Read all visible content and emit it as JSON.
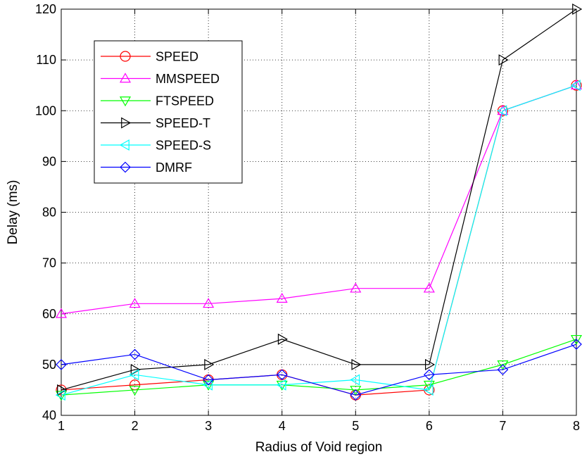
{
  "chart_data": {
    "type": "line",
    "title": "",
    "xlabel": "Radius of Void region",
    "ylabel": "Delay (ms)",
    "x": [
      1,
      2,
      3,
      4,
      5,
      6,
      7,
      8
    ],
    "xlim": [
      1,
      8
    ],
    "ylim": [
      40,
      120
    ],
    "xticks": [
      1,
      2,
      3,
      4,
      5,
      6,
      7,
      8
    ],
    "yticks": [
      40,
      50,
      60,
      70,
      80,
      90,
      100,
      110,
      120
    ],
    "grid": true,
    "legend_position": "top-left",
    "series": [
      {
        "name": "SPEED",
        "color": "#ff0000",
        "marker": "circle",
        "values": [
          45,
          46,
          47,
          48,
          44,
          45,
          100,
          105
        ]
      },
      {
        "name": "MMSPEED",
        "color": "#ff00ff",
        "marker": "triangle-up",
        "values": [
          60,
          62,
          62,
          63,
          65,
          65,
          100,
          105
        ]
      },
      {
        "name": "FTSPEED",
        "color": "#00ff00",
        "marker": "triangle-down",
        "values": [
          44,
          45,
          46,
          46,
          45,
          46,
          50,
          55
        ]
      },
      {
        "name": "SPEED-T",
        "color": "#000000",
        "marker": "triangle-right",
        "values": [
          45,
          49,
          50,
          55,
          50,
          50,
          110,
          120
        ]
      },
      {
        "name": "SPEED-S",
        "color": "#00ffff",
        "marker": "triangle-left",
        "values": [
          44,
          48,
          46,
          46,
          47,
          45,
          100,
          105
        ]
      },
      {
        "name": "DMRF",
        "color": "#0000ff",
        "marker": "diamond",
        "values": [
          50,
          52,
          47,
          48,
          44,
          48,
          49,
          54
        ]
      }
    ]
  }
}
